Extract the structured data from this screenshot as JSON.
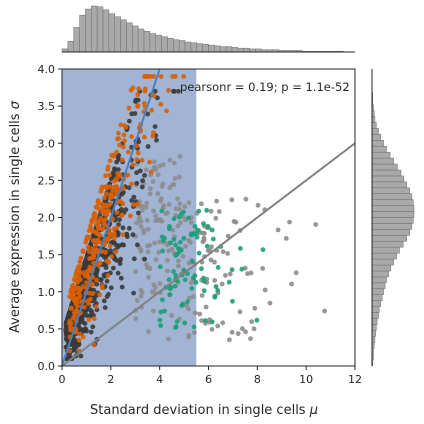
{
  "chart_data": {
    "type": "scatter",
    "title": "",
    "xlabel": "Standard deviation in single cells",
    "xlabel_symbol": "μ",
    "ylabel": "Average expression in single cells",
    "ylabel_symbol": "σ",
    "xlim": [
      0,
      12
    ],
    "ylim": [
      0,
      4
    ],
    "x_ticks": [
      "0",
      "2",
      "4",
      "6",
      "8",
      "10",
      "12"
    ],
    "y_ticks": [
      "0.0",
      "0.5",
      "1.0",
      "1.5",
      "2.0",
      "2.5",
      "3.0",
      "3.5",
      "4.0"
    ],
    "annotation": "pearsonr = 0.19; p = 1.1e-52",
    "grid": false,
    "legend": "none",
    "highlight_region": {
      "x": [
        0,
        5.5
      ],
      "y": [
        0,
        4
      ],
      "color": "#a1b4d4"
    },
    "reference_lines": [
      {
        "name": "blue line",
        "color": "#4c7fbf",
        "points": [
          [
            0,
            0
          ],
          [
            4,
            4
          ]
        ]
      },
      {
        "name": "grey line",
        "color": "#808080",
        "points": [
          [
            0,
            0
          ],
          [
            12,
            3
          ]
        ]
      }
    ],
    "series": [
      {
        "color": "#3a3a3a",
        "description": "dark grey cloud (dense core)"
      },
      {
        "color": "#8c8c8c",
        "description": "light grey outliers"
      },
      {
        "color": "#d95f02",
        "description": "orange points"
      },
      {
        "color": "#1b9e77",
        "description": "teal points"
      }
    ],
    "marginal_x_hist": {
      "range": [
        0,
        12
      ],
      "bin_width": 0.24,
      "counts": [
        4,
        14,
        32,
        48,
        56,
        60,
        59,
        55,
        50,
        46,
        42,
        38,
        34,
        30,
        27,
        24,
        22,
        20,
        18,
        16,
        15,
        13,
        12,
        11,
        10,
        9,
        8,
        7,
        7,
        6,
        5,
        5,
        4,
        4,
        3,
        3,
        3,
        2,
        2,
        2,
        2,
        1,
        1,
        1,
        1,
        1,
        1,
        1,
        0,
        0
      ]
    },
    "marginal_y_hist": {
      "range": [
        0,
        4
      ],
      "bin_width": 0.08,
      "counts": [
        1,
        2,
        2,
        3,
        4,
        5,
        6,
        7,
        9,
        10,
        12,
        14,
        16,
        18,
        20,
        23,
        26,
        30,
        34,
        38,
        43,
        48,
        52,
        55,
        57,
        58,
        58,
        57,
        55,
        52,
        48,
        44,
        40,
        35,
        30,
        25,
        20,
        16,
        12,
        9,
        6,
        4,
        3,
        2,
        1,
        1,
        0,
        0,
        0,
        0
      ]
    },
    "colors": {
      "histogram_fill": "#a9a9a9",
      "histogram_edge": "#6f6f6f",
      "axis": "#262626"
    }
  }
}
